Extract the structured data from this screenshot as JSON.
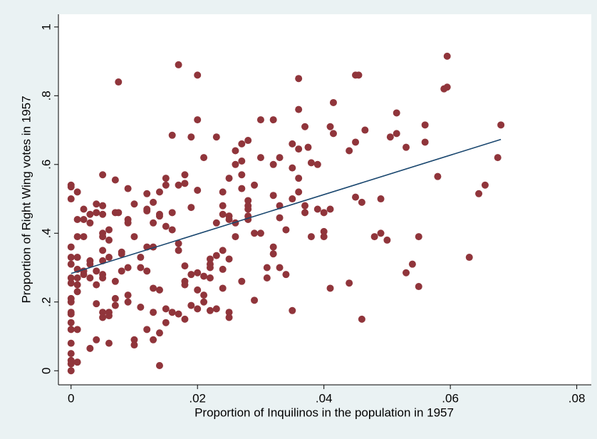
{
  "chart_data": {
    "type": "scatter",
    "xlabel": "Proportion of Inquilinos in the population in 1957",
    "ylabel": "Proportion of Right Wing votes in 1957",
    "xlim": [
      -0.002,
      0.0823
    ],
    "ylim": [
      -0.041,
      1.037
    ],
    "xticks": [
      {
        "value": 0,
        "label": "0"
      },
      {
        "value": 0.02,
        "label": ".02"
      },
      {
        "value": 0.04,
        "label": ".04"
      },
      {
        "value": 0.06,
        "label": ".06"
      },
      {
        "value": 0.08,
        "label": ".08"
      }
    ],
    "yticks": [
      {
        "value": 0,
        "label": "0"
      },
      {
        "value": 0.2,
        "label": ".2"
      },
      {
        "value": 0.4,
        "label": ".4"
      },
      {
        "value": 0.6,
        "label": ".6"
      },
      {
        "value": 0.8,
        "label": ".8"
      },
      {
        "value": 1,
        "label": "1"
      }
    ],
    "grid": false,
    "series": [
      {
        "color": "#90353b",
        "mode": "markers",
        "x": [
          0,
          0,
          0,
          0,
          0,
          0,
          0,
          0,
          0,
          0,
          0,
          0,
          0,
          0,
          0,
          0,
          0,
          0,
          0,
          0.001,
          0.001,
          0.001,
          0.001,
          0.001,
          0.001,
          0.001,
          0.001,
          0.001,
          0.001,
          0.002,
          0.002,
          0.002,
          0.002,
          0.002,
          0.003,
          0.003,
          0.003,
          0.003,
          0.003,
          0.003,
          0.004,
          0.004,
          0.004,
          0.004,
          0.004,
          0.004,
          0.005,
          0.005,
          0.005,
          0.005,
          0.005,
          0.005,
          0.005,
          0.005,
          0.005,
          0.005,
          0.005,
          0.006,
          0.006,
          0.006,
          0.006,
          0.006,
          0.006,
          0.007,
          0.007,
          0.007,
          0.007,
          0.007,
          0.0075,
          0.0075,
          0.008,
          0.008,
          0.008,
          0.009,
          0.009,
          0.009,
          0.009,
          0.009,
          0.009,
          0.01,
          0.01,
          0.01,
          0.01,
          0.011,
          0.011,
          0.011,
          0.012,
          0.012,
          0.012,
          0.012,
          0.012,
          0.012,
          0.013,
          0.013,
          0.013,
          0.013,
          0.013,
          0.013,
          0.014,
          0.014,
          0.014,
          0.014,
          0.014,
          0.014,
          0.015,
          0.015,
          0.015,
          0.015,
          0.015,
          0.016,
          0.016,
          0.016,
          0.016,
          0.017,
          0.017,
          0.017,
          0.017,
          0.017,
          0.018,
          0.018,
          0.018,
          0.018,
          0.018,
          0.018,
          0.019,
          0.019,
          0.019,
          0.019,
          0.02,
          0.02,
          0.02,
          0.02,
          0.02,
          0.02,
          0.021,
          0.021,
          0.021,
          0.021,
          0.022,
          0.022,
          0.022,
          0.022,
          0.022,
          0.023,
          0.023,
          0.023,
          0.023,
          0.024,
          0.024,
          0.024,
          0.024,
          0.024,
          0.024,
          0.025,
          0.025,
          0.025,
          0.025,
          0.025,
          0.025,
          0.026,
          0.026,
          0.026,
          0.026,
          0.027,
          0.027,
          0.027,
          0.027,
          0.027,
          0.028,
          0.028,
          0.028,
          0.028,
          0.028,
          0.028,
          0.029,
          0.029,
          0.029,
          0.03,
          0.03,
          0.03,
          0.031,
          0.031,
          0.032,
          0.032,
          0.032,
          0.032,
          0.032,
          0.033,
          0.033,
          0.033,
          0.033,
          0.034,
          0.034,
          0.035,
          0.035,
          0.035,
          0.035,
          0.036,
          0.036,
          0.036,
          0.036,
          0.036,
          0.037,
          0.037,
          0.037,
          0.0375,
          0.038,
          0.038,
          0.039,
          0.039,
          0.04,
          0.04,
          0.04,
          0.041,
          0.041,
          0.041,
          0.0415,
          0.0415,
          0.044,
          0.044,
          0.045,
          0.045,
          0.045,
          0.0455,
          0.046,
          0.046,
          0.0465,
          0.048,
          0.049,
          0.049,
          0.05,
          0.0505,
          0.0515,
          0.0515,
          0.053,
          0.053,
          0.054,
          0.055,
          0.055,
          0.056,
          0.056,
          0.058,
          0.059,
          0.0595,
          0.0595,
          0.063,
          0.0645,
          0.0655,
          0.0675,
          0.068
        ],
        "values": [
          0.54,
          0.535,
          0.5,
          0.36,
          0.33,
          0.31,
          0.27,
          0.255,
          0.21,
          0.2,
          0.17,
          0.165,
          0.14,
          0.12,
          0.08,
          0.05,
          0.03,
          0.02,
          0,
          0.52,
          0.44,
          0.39,
          0.33,
          0.295,
          0.27,
          0.25,
          0.23,
          0.12,
          0.025,
          0.47,
          0.44,
          0.39,
          0.29,
          0.28,
          0.065,
          0.31,
          0.32,
          0.27,
          0.43,
          0.455,
          0.46,
          0.485,
          0.29,
          0.25,
          0.195,
          0.09,
          0.57,
          0.48,
          0.455,
          0.4,
          0.39,
          0.35,
          0.32,
          0.28,
          0.27,
          0.17,
          0.155,
          0.41,
          0.38,
          0.33,
          0.16,
          0.17,
          0.08,
          0.555,
          0.46,
          0.26,
          0.19,
          0.21,
          0.84,
          0.46,
          0.34,
          0.345,
          0.29,
          0.44,
          0.53,
          0.43,
          0.22,
          0.2,
          0.3,
          0.485,
          0.39,
          0.09,
          0.075,
          0.33,
          0.3,
          0.185,
          0.515,
          0.47,
          0.465,
          0.36,
          0.29,
          0.12,
          0.49,
          0.43,
          0.36,
          0.24,
          0.17,
          0.09,
          0.455,
          0.45,
          0.235,
          0.11,
          0.015,
          0.52,
          0.56,
          0.42,
          0.54,
          0.14,
          0.18,
          0.46,
          0.41,
          0.685,
          0.17,
          0.54,
          0.35,
          0.37,
          0.165,
          0.89,
          0.57,
          0.26,
          0.25,
          0.15,
          0.545,
          0.305,
          0.68,
          0.475,
          0.28,
          0.19,
          0.86,
          0.73,
          0.525,
          0.285,
          0.235,
          0.18,
          0.62,
          0.275,
          0.22,
          0.2,
          0.325,
          0.31,
          0.3,
          0.27,
          0.175,
          0.68,
          0.43,
          0.335,
          0.18,
          0.52,
          0.48,
          0.455,
          0.35,
          0.295,
          0.24,
          0.56,
          0.45,
          0.44,
          0.155,
          0.17,
          0.325,
          0.64,
          0.6,
          0.39,
          0.43,
          0.57,
          0.53,
          0.66,
          0.26,
          0.61,
          0.67,
          0.495,
          0.47,
          0.45,
          0.44,
          0.48,
          0.54,
          0.4,
          0.205,
          0.73,
          0.62,
          0.4,
          0.27,
          0.3,
          0.73,
          0.6,
          0.51,
          0.36,
          0.34,
          0.62,
          0.48,
          0.445,
          0.3,
          0.28,
          0.41,
          0.66,
          0.59,
          0.175,
          0.5,
          0.85,
          0.76,
          0.645,
          0.56,
          0.52,
          0.71,
          0.46,
          0.48,
          0.65,
          0.605,
          0.39,
          0.6,
          0.47,
          0.46,
          0.405,
          0.39,
          0.71,
          0.24,
          0.47,
          0.78,
          0.69,
          0.64,
          0.255,
          0.86,
          0.665,
          0.505,
          0.86,
          0.49,
          0.15,
          0.7,
          0.39,
          0.4,
          0.5,
          0.38,
          0.68,
          0.69,
          0.75,
          0.65,
          0.285,
          0.31,
          0.39,
          0.245,
          0.665,
          0.715,
          0.565,
          0.82,
          0.915,
          0.825,
          0.33,
          0.515,
          0.54,
          0.62,
          0.715
        ]
      },
      {
        "color": "#1a476f",
        "mode": "line",
        "x": [
          0,
          0.068
        ],
        "values": [
          0.283,
          0.673
        ]
      }
    ]
  }
}
